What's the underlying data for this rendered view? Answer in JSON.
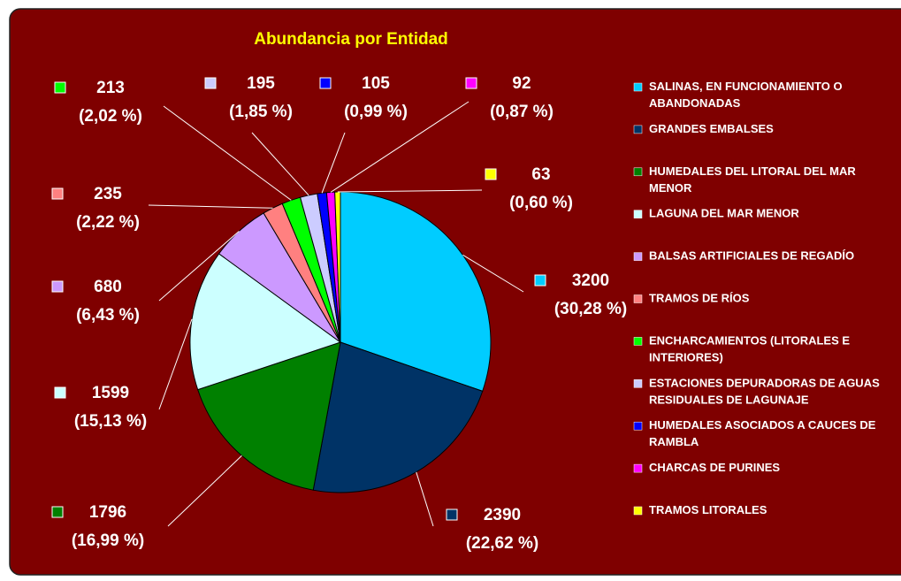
{
  "chart_data": {
    "type": "pie",
    "title": "Abundancia por Entidad",
    "categories": [
      "SALINAS, EN FUNCIONAMIENTO O ABANDONADAS",
      "GRANDES EMBALSES",
      "HUMEDALES DEL LITORAL DEL MAR MENOR",
      "LAGUNA DEL MAR MENOR",
      "BALSAS ARTIFICIALES DE REGADÍO",
      "TRAMOS DE RÍOS",
      "ENCHARCAMIENTOS (LITORALES E INTERIORES)",
      "ESTACIONES DEPURADORAS DE AGUAS RESIDUALES DE LAGUNAJE",
      "HUMEDALES ASOCIADOS A CAUCES DE RAMBLA",
      "CHARCAS DE PURINES",
      "TRAMOS LITORALES"
    ],
    "values": [
      3200,
      2390,
      1796,
      1599,
      680,
      235,
      213,
      195,
      105,
      92,
      63
    ],
    "percent_labels": [
      "(30,28 %)",
      "(22,62 %)",
      "(16,99 %)",
      "(15,13 %)",
      "(6,43 %)",
      "(2,22 %)",
      "(2,02 %)",
      "(1,85 %)",
      "(0,99 %)",
      "(0,87 %)",
      "(0,60 %)"
    ],
    "colors": [
      "#00ccff",
      "#003366",
      "#008000",
      "#ccffff",
      "#cc99ff",
      "#ff8080",
      "#00ff00",
      "#ccccff",
      "#0000ff",
      "#ff00ff",
      "#ffff00"
    ],
    "legend": "right"
  }
}
